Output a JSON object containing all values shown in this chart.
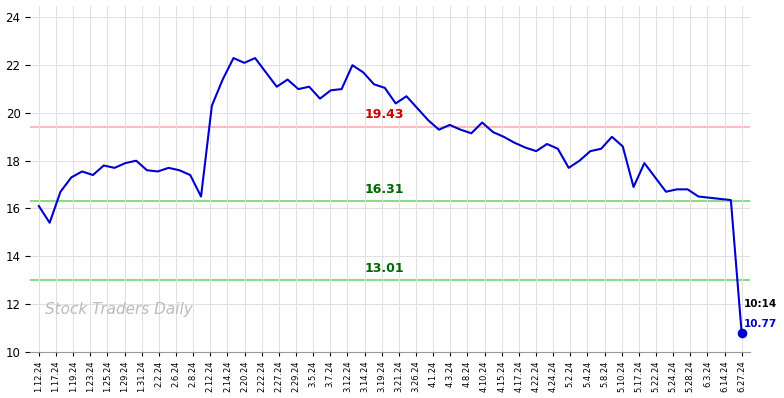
{
  "ylim": [
    10,
    24.5
  ],
  "yticks": [
    10,
    12,
    14,
    16,
    18,
    20,
    22,
    24
  ],
  "hline_red": 19.43,
  "hline_green_mid": 16.31,
  "hline_green_low": 13.01,
  "hline_red_label": "19.43",
  "hline_mid_label": "16.31",
  "hline_low_label": "13.01",
  "annotation_time": "10:14",
  "annotation_price": "10.77",
  "watermark": "Stock Traders Daily",
  "x_labels": [
    "1.12.24",
    "1.17.24",
    "1.19.24",
    "1.23.24",
    "1.25.24",
    "1.29.24",
    "1.31.24",
    "2.2.24",
    "2.6.24",
    "2.8.24",
    "2.12.24",
    "2.14.24",
    "2.20.24",
    "2.22.24",
    "2.27.24",
    "2.29.24",
    "3.5.24",
    "3.7.24",
    "3.12.24",
    "3.14.24",
    "3.19.24",
    "3.21.24",
    "3.26.24",
    "4.1.24",
    "4.3.24",
    "4.8.24",
    "4.10.24",
    "4.15.24",
    "4.17.24",
    "4.22.24",
    "4.24.24",
    "5.2.24",
    "5.4.24",
    "5.8.24",
    "5.10.24",
    "5.17.24",
    "5.22.24",
    "5.24.24",
    "5.28.24",
    "6.3.24",
    "6.14.24",
    "6.27.24"
  ],
  "y_values": [
    16.1,
    15.4,
    16.7,
    17.3,
    17.55,
    17.4,
    17.8,
    17.7,
    17.9,
    18.0,
    17.6,
    17.55,
    17.7,
    17.6,
    17.4,
    16.5,
    20.3,
    21.4,
    22.3,
    22.1,
    22.3,
    21.7,
    21.1,
    21.4,
    21.0,
    21.1,
    20.6,
    20.95,
    21.0,
    22.0,
    21.7,
    21.2,
    21.05,
    20.4,
    20.7,
    20.2,
    19.7,
    19.3,
    19.5,
    19.3,
    19.15,
    19.6,
    19.2,
    19.0,
    18.75,
    18.55,
    18.4,
    18.7,
    18.5,
    17.7,
    18.0,
    18.4,
    18.5,
    19.0,
    18.6,
    16.9,
    17.9,
    17.3,
    16.7,
    16.8,
    16.8,
    16.5,
    16.45,
    16.4,
    16.35,
    10.77
  ],
  "line_color": "#0000cc",
  "line_width": 1.5,
  "dot_color": "#0000cc",
  "dot_size": 35,
  "red_line_color": "#ffbbbb",
  "green_line_color": "#88dd88",
  "background_color": "#ffffff",
  "grid_color": "#e0e0e0",
  "title_color": "#333333",
  "title_fontsize": 13,
  "watermark_color": "#bbbbbb",
  "watermark_fontsize": 11,
  "label_red_color": "#cc0000",
  "label_green_color": "#006600"
}
